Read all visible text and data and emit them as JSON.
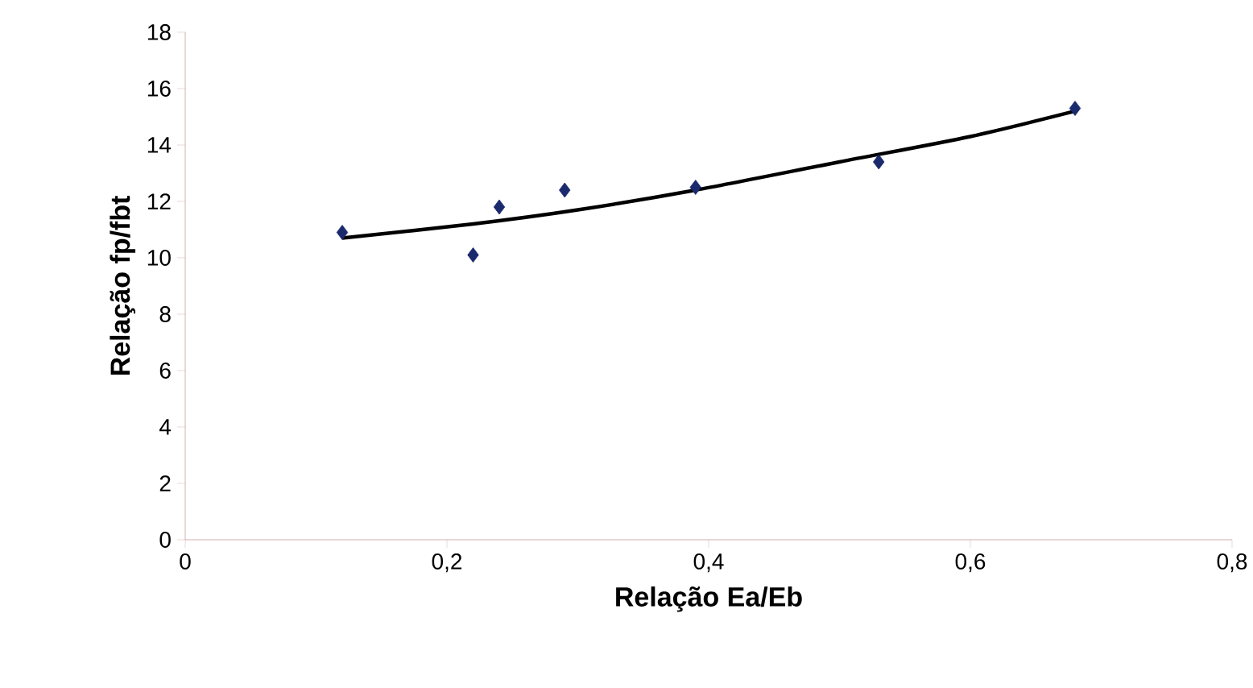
{
  "chart_data": {
    "type": "scatter",
    "xlabel": "Relação Ea/Eb",
    "ylabel": "Relação fp/fbt",
    "xlim": [
      0,
      0.8
    ],
    "ylim": [
      0,
      18
    ],
    "xticks": [
      {
        "value": 0,
        "label": "0"
      },
      {
        "value": 0.2,
        "label": "0,2"
      },
      {
        "value": 0.4,
        "label": "0,4"
      },
      {
        "value": 0.6,
        "label": "0,6"
      },
      {
        "value": 0.8,
        "label": "0,8"
      }
    ],
    "yticks": [
      0,
      2,
      4,
      6,
      8,
      10,
      12,
      14,
      16,
      18
    ],
    "grid": false,
    "series": [
      {
        "marker": "diamond",
        "color": "#1a2a6c",
        "x": [
          0.12,
          0.22,
          0.24,
          0.29,
          0.39,
          0.53,
          0.68
        ],
        "values": [
          10.9,
          10.1,
          11.8,
          12.4,
          12.5,
          13.4,
          15.3
        ]
      },
      {
        "type": "line",
        "marker": "none",
        "color": "#000000",
        "x": [
          0.12,
          0.22,
          0.3,
          0.39,
          0.5,
          0.6,
          0.68
        ],
        "values": [
          10.7,
          11.2,
          11.7,
          12.4,
          13.4,
          14.3,
          15.2
        ]
      }
    ]
  }
}
